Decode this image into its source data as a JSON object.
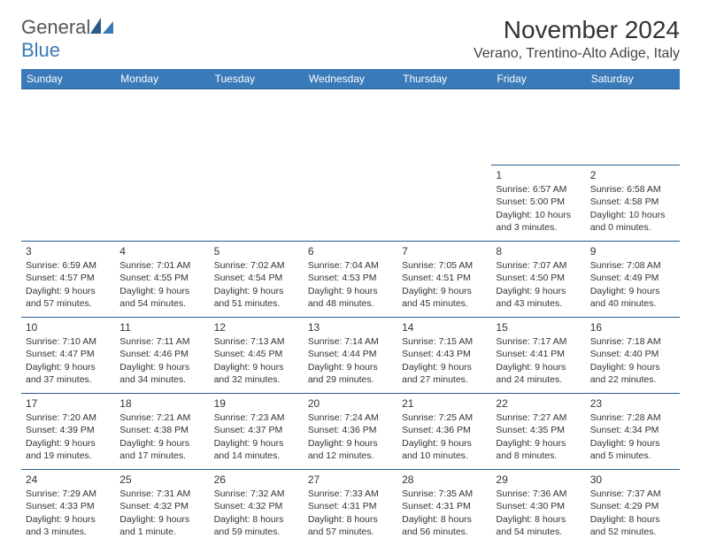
{
  "brand": {
    "word1": "General",
    "word2": "Blue"
  },
  "title": "November 2024",
  "location": "Verano, Trentino-Alto Adige, Italy",
  "colors": {
    "header_bg": "#3a7ab8",
    "header_text": "#ffffff",
    "row_border": "#2a5a8a",
    "spacer_bg": "#eeeeee",
    "page_bg": "#ffffff",
    "text": "#333333"
  },
  "day_headers": [
    "Sunday",
    "Monday",
    "Tuesday",
    "Wednesday",
    "Thursday",
    "Friday",
    "Saturday"
  ],
  "weeks": [
    [
      null,
      null,
      null,
      null,
      null,
      {
        "n": "1",
        "sr": "Sunrise: 6:57 AM",
        "ss": "Sunset: 5:00 PM",
        "dl": "Daylight: 10 hours and 3 minutes."
      },
      {
        "n": "2",
        "sr": "Sunrise: 6:58 AM",
        "ss": "Sunset: 4:58 PM",
        "dl": "Daylight: 10 hours and 0 minutes."
      }
    ],
    [
      {
        "n": "3",
        "sr": "Sunrise: 6:59 AM",
        "ss": "Sunset: 4:57 PM",
        "dl": "Daylight: 9 hours and 57 minutes."
      },
      {
        "n": "4",
        "sr": "Sunrise: 7:01 AM",
        "ss": "Sunset: 4:55 PM",
        "dl": "Daylight: 9 hours and 54 minutes."
      },
      {
        "n": "5",
        "sr": "Sunrise: 7:02 AM",
        "ss": "Sunset: 4:54 PM",
        "dl": "Daylight: 9 hours and 51 minutes."
      },
      {
        "n": "6",
        "sr": "Sunrise: 7:04 AM",
        "ss": "Sunset: 4:53 PM",
        "dl": "Daylight: 9 hours and 48 minutes."
      },
      {
        "n": "7",
        "sr": "Sunrise: 7:05 AM",
        "ss": "Sunset: 4:51 PM",
        "dl": "Daylight: 9 hours and 45 minutes."
      },
      {
        "n": "8",
        "sr": "Sunrise: 7:07 AM",
        "ss": "Sunset: 4:50 PM",
        "dl": "Daylight: 9 hours and 43 minutes."
      },
      {
        "n": "9",
        "sr": "Sunrise: 7:08 AM",
        "ss": "Sunset: 4:49 PM",
        "dl": "Daylight: 9 hours and 40 minutes."
      }
    ],
    [
      {
        "n": "10",
        "sr": "Sunrise: 7:10 AM",
        "ss": "Sunset: 4:47 PM",
        "dl": "Daylight: 9 hours and 37 minutes."
      },
      {
        "n": "11",
        "sr": "Sunrise: 7:11 AM",
        "ss": "Sunset: 4:46 PM",
        "dl": "Daylight: 9 hours and 34 minutes."
      },
      {
        "n": "12",
        "sr": "Sunrise: 7:13 AM",
        "ss": "Sunset: 4:45 PM",
        "dl": "Daylight: 9 hours and 32 minutes."
      },
      {
        "n": "13",
        "sr": "Sunrise: 7:14 AM",
        "ss": "Sunset: 4:44 PM",
        "dl": "Daylight: 9 hours and 29 minutes."
      },
      {
        "n": "14",
        "sr": "Sunrise: 7:15 AM",
        "ss": "Sunset: 4:43 PM",
        "dl": "Daylight: 9 hours and 27 minutes."
      },
      {
        "n": "15",
        "sr": "Sunrise: 7:17 AM",
        "ss": "Sunset: 4:41 PM",
        "dl": "Daylight: 9 hours and 24 minutes."
      },
      {
        "n": "16",
        "sr": "Sunrise: 7:18 AM",
        "ss": "Sunset: 4:40 PM",
        "dl": "Daylight: 9 hours and 22 minutes."
      }
    ],
    [
      {
        "n": "17",
        "sr": "Sunrise: 7:20 AM",
        "ss": "Sunset: 4:39 PM",
        "dl": "Daylight: 9 hours and 19 minutes."
      },
      {
        "n": "18",
        "sr": "Sunrise: 7:21 AM",
        "ss": "Sunset: 4:38 PM",
        "dl": "Daylight: 9 hours and 17 minutes."
      },
      {
        "n": "19",
        "sr": "Sunrise: 7:23 AM",
        "ss": "Sunset: 4:37 PM",
        "dl": "Daylight: 9 hours and 14 minutes."
      },
      {
        "n": "20",
        "sr": "Sunrise: 7:24 AM",
        "ss": "Sunset: 4:36 PM",
        "dl": "Daylight: 9 hours and 12 minutes."
      },
      {
        "n": "21",
        "sr": "Sunrise: 7:25 AM",
        "ss": "Sunset: 4:36 PM",
        "dl": "Daylight: 9 hours and 10 minutes."
      },
      {
        "n": "22",
        "sr": "Sunrise: 7:27 AM",
        "ss": "Sunset: 4:35 PM",
        "dl": "Daylight: 9 hours and 8 minutes."
      },
      {
        "n": "23",
        "sr": "Sunrise: 7:28 AM",
        "ss": "Sunset: 4:34 PM",
        "dl": "Daylight: 9 hours and 5 minutes."
      }
    ],
    [
      {
        "n": "24",
        "sr": "Sunrise: 7:29 AM",
        "ss": "Sunset: 4:33 PM",
        "dl": "Daylight: 9 hours and 3 minutes."
      },
      {
        "n": "25",
        "sr": "Sunrise: 7:31 AM",
        "ss": "Sunset: 4:32 PM",
        "dl": "Daylight: 9 hours and 1 minute."
      },
      {
        "n": "26",
        "sr": "Sunrise: 7:32 AM",
        "ss": "Sunset: 4:32 PM",
        "dl": "Daylight: 8 hours and 59 minutes."
      },
      {
        "n": "27",
        "sr": "Sunrise: 7:33 AM",
        "ss": "Sunset: 4:31 PM",
        "dl": "Daylight: 8 hours and 57 minutes."
      },
      {
        "n": "28",
        "sr": "Sunrise: 7:35 AM",
        "ss": "Sunset: 4:31 PM",
        "dl": "Daylight: 8 hours and 56 minutes."
      },
      {
        "n": "29",
        "sr": "Sunrise: 7:36 AM",
        "ss": "Sunset: 4:30 PM",
        "dl": "Daylight: 8 hours and 54 minutes."
      },
      {
        "n": "30",
        "sr": "Sunrise: 7:37 AM",
        "ss": "Sunset: 4:29 PM",
        "dl": "Daylight: 8 hours and 52 minutes."
      }
    ]
  ]
}
